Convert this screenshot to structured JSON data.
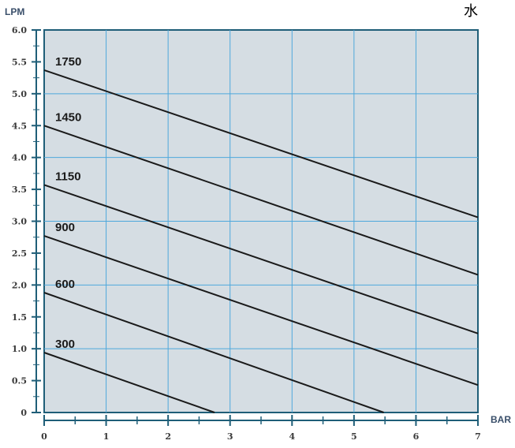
{
  "corner_label": "水",
  "colors": {
    "plot_bg": "#d5dde3",
    "grid": "#4ea8dc",
    "axis": "#1f5e78",
    "line": "#1a1a1a"
  },
  "chart_data": {
    "type": "line",
    "title": "",
    "xlabel": "BAR",
    "ylabel": "LPM",
    "xlim": [
      0,
      7
    ],
    "ylim": [
      0,
      6
    ],
    "grid": true,
    "x_ticks": [
      "0",
      "1",
      "2",
      "3",
      "4",
      "5",
      "6",
      "7"
    ],
    "y_ticks": [
      "0",
      "0.5",
      "1.0",
      "1.5",
      "2.0",
      "2.5",
      "3.0",
      "3.5",
      "4.0",
      "4.5",
      "5.0",
      "5.5",
      "6.0"
    ],
    "series": [
      {
        "name": "1750",
        "x": [
          0,
          7
        ],
        "y": [
          5.37,
          3.06
        ]
      },
      {
        "name": "1450",
        "x": [
          0,
          7
        ],
        "y": [
          4.5,
          2.16
        ]
      },
      {
        "name": "1150",
        "x": [
          0,
          7
        ],
        "y": [
          3.57,
          1.24
        ]
      },
      {
        "name": "900",
        "x": [
          0,
          7
        ],
        "y": [
          2.77,
          0.43
        ]
      },
      {
        "name": "600",
        "x": [
          0,
          5.48
        ],
        "y": [
          1.88,
          0
        ]
      },
      {
        "name": "300",
        "x": [
          0,
          2.75
        ],
        "y": [
          0.94,
          0
        ]
      }
    ]
  }
}
